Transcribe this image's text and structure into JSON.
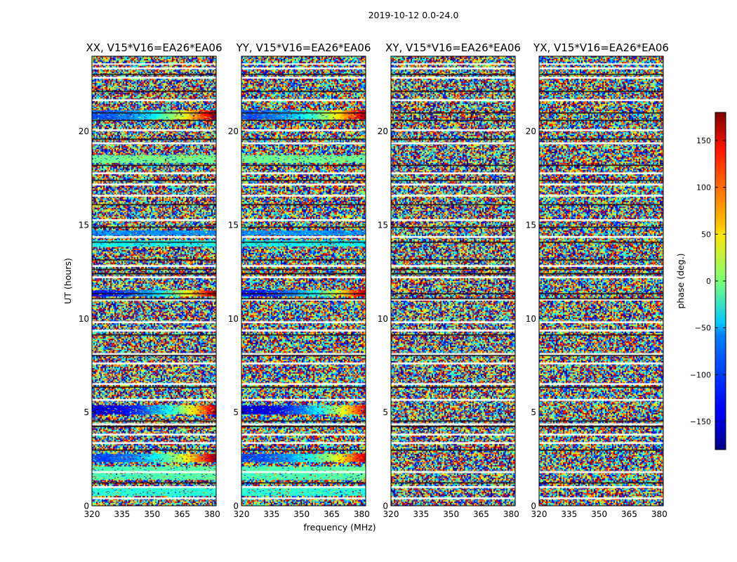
{
  "figure": {
    "title": "2019-10-12 0.0-24.0",
    "xlabel": "frequency (MHz)",
    "ylabel": "UT (hours)"
  },
  "chart_data": {
    "type": "heatmap",
    "title": "2019-10-12 0.0-24.0",
    "xlabel": "frequency (MHz)",
    "ylabel": "UT (hours)",
    "xlim": [
      320,
      382
    ],
    "ylim": [
      0,
      24
    ],
    "x_ticks": [
      320,
      335,
      350,
      365,
      380
    ],
    "y_ticks": [
      0,
      5,
      10,
      15,
      20
    ],
    "grid": false,
    "colormap": "jet",
    "panels": [
      {
        "title": "XX, V15*V16=EA26*EA06",
        "coherent_bands": [
          {
            "t0": 0.55,
            "t1": 1.05,
            "base": -30,
            "gradient": 0
          },
          {
            "t0": 1.4,
            "t1": 2.1,
            "base": -20,
            "gradient": 10
          },
          {
            "t0": 2.35,
            "t1": 2.75,
            "base": -110,
            "gradient": 290
          },
          {
            "t0": 4.9,
            "t1": 5.35,
            "base": -150,
            "gradient": 320
          },
          {
            "t0": 11.2,
            "t1": 11.5,
            "base": -130,
            "gradient": 310
          },
          {
            "t0": 13.85,
            "t1": 14.15,
            "base": -45,
            "gradient": 0
          },
          {
            "t0": 14.45,
            "t1": 14.7,
            "base": -85,
            "gradient": 0
          },
          {
            "t0": 18.3,
            "t1": 18.7,
            "base": -5,
            "gradient": 0
          },
          {
            "t0": 20.65,
            "t1": 21.1,
            "base": -105,
            "gradient": 290
          }
        ]
      },
      {
        "title": "YY, V15*V16=EA26*EA06",
        "coherent_bands": [
          {
            "t0": 0.55,
            "t1": 1.05,
            "base": -30,
            "gradient": 0
          },
          {
            "t0": 1.4,
            "t1": 2.1,
            "base": -20,
            "gradient": 10
          },
          {
            "t0": 2.35,
            "t1": 2.75,
            "base": -110,
            "gradient": 270
          },
          {
            "t0": 4.9,
            "t1": 5.35,
            "base": -150,
            "gradient": 300
          },
          {
            "t0": 11.2,
            "t1": 11.5,
            "base": -130,
            "gradient": 300
          },
          {
            "t0": 13.85,
            "t1": 14.15,
            "base": -45,
            "gradient": 0
          },
          {
            "t0": 14.45,
            "t1": 14.7,
            "base": -85,
            "gradient": 0
          },
          {
            "t0": 18.3,
            "t1": 18.7,
            "base": -5,
            "gradient": 0
          },
          {
            "t0": 20.65,
            "t1": 21.1,
            "base": -105,
            "gradient": 280
          }
        ]
      },
      {
        "title": "XY, V15*V16=EA26*EA06",
        "coherent_bands": []
      },
      {
        "title": "YX, V15*V16=EA26*EA06",
        "coherent_bands": []
      }
    ],
    "flagged_hours": [
      [
        0.35,
        0.45
      ],
      [
        0.95,
        1.05
      ],
      [
        1.75,
        1.85
      ],
      [
        3.3,
        3.4
      ],
      [
        3.75,
        3.85
      ],
      [
        4.3,
        4.4
      ],
      [
        5.6,
        5.7
      ],
      [
        6.45,
        6.55
      ],
      [
        7.55,
        7.65
      ],
      [
        8.05,
        8.15
      ],
      [
        9.3,
        9.4
      ],
      [
        9.75,
        9.85
      ],
      [
        10.95,
        11.05
      ],
      [
        12.15,
        12.25
      ],
      [
        12.75,
        12.85
      ],
      [
        14.3,
        14.4
      ],
      [
        15.2,
        15.3
      ],
      [
        16.5,
        16.6
      ],
      [
        17.1,
        17.2
      ],
      [
        17.7,
        17.8
      ],
      [
        19.3,
        19.4
      ],
      [
        20.0,
        20.1
      ],
      [
        21.6,
        21.7
      ],
      [
        22.8,
        22.9
      ],
      [
        23.3,
        23.4
      ],
      [
        23.55,
        23.62
      ]
    ],
    "dark_hours": [
      [
        1.2,
        1.25
      ],
      [
        2.95,
        3.0
      ],
      [
        4.2,
        4.27
      ],
      [
        4.5,
        4.55
      ],
      [
        6.3,
        6.36
      ],
      [
        8.0,
        8.05
      ],
      [
        9.1,
        9.15
      ],
      [
        11.02,
        11.08
      ],
      [
        11.3,
        11.35
      ],
      [
        12.35,
        12.42
      ],
      [
        12.6,
        12.65
      ],
      [
        13.1,
        13.15
      ],
      [
        14.05,
        14.1
      ],
      [
        14.85,
        14.9
      ],
      [
        16.05,
        16.1
      ],
      [
        17.35,
        17.4
      ],
      [
        18.15,
        18.2
      ],
      [
        19.55,
        19.6
      ],
      [
        20.55,
        20.6
      ],
      [
        20.95,
        21.0
      ],
      [
        22.1,
        22.15
      ],
      [
        23.0,
        23.05
      ]
    ],
    "colorbar": {
      "label": "phase (deg.)",
      "range": [
        -180,
        180
      ],
      "ticks": [
        -150,
        -100,
        -50,
        0,
        50,
        100,
        150
      ],
      "tick_labels": [
        "−150",
        "−100",
        "−50",
        "0",
        "50",
        "100",
        "150"
      ]
    }
  }
}
